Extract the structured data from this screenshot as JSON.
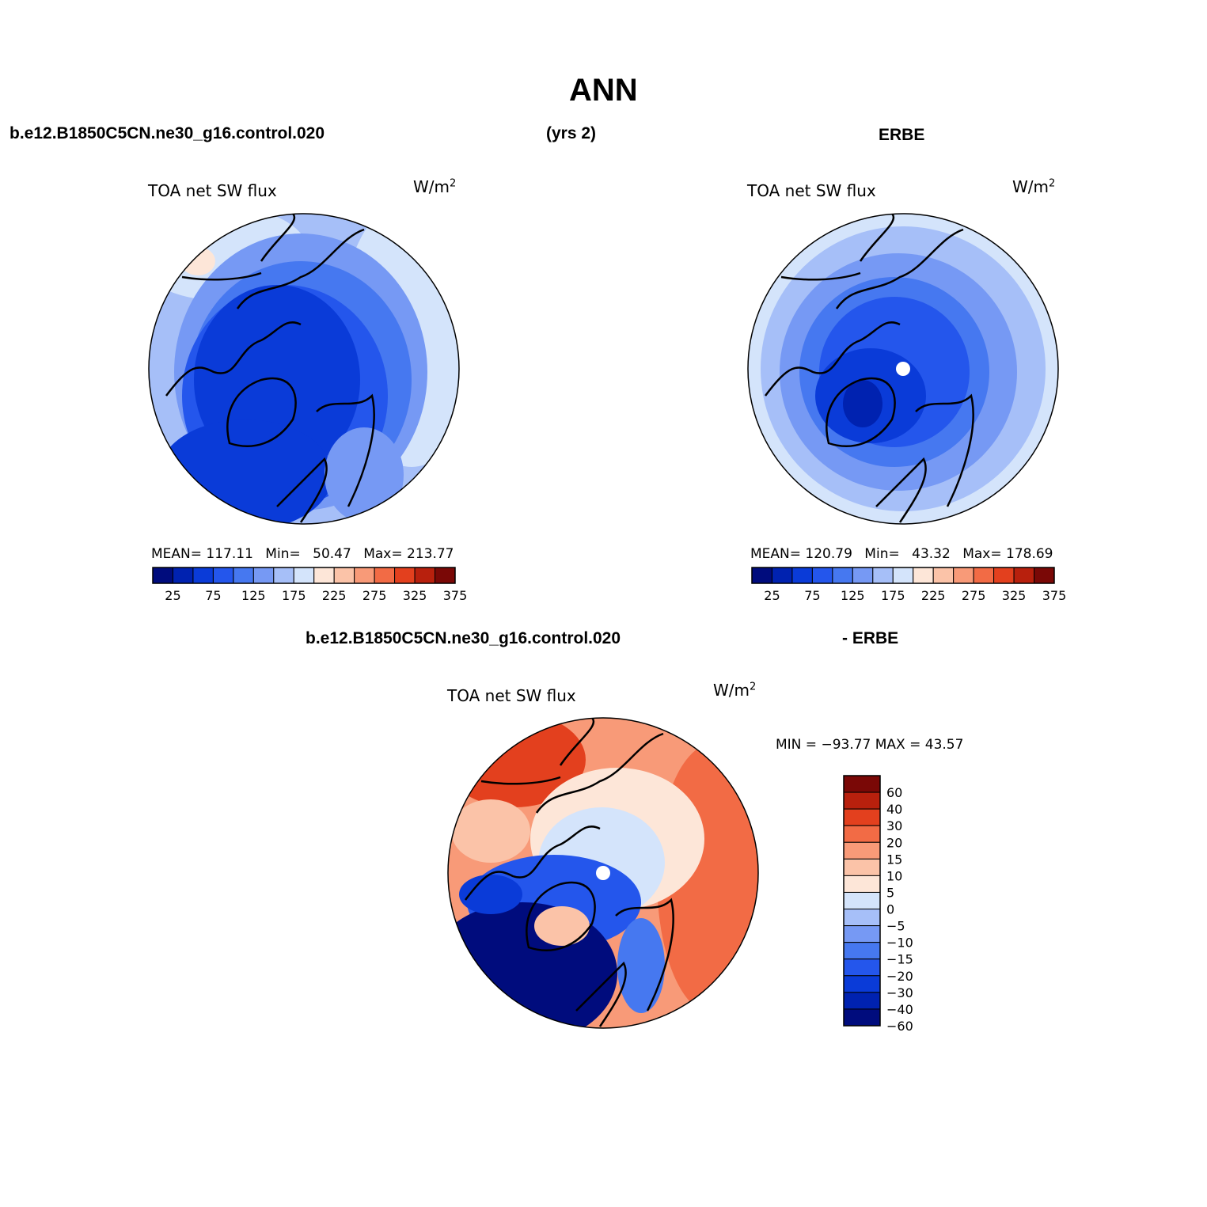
{
  "figure": {
    "title": "ANN",
    "left_header": "b.e12.B1850C5CN.ne30_g16.control.020",
    "center_header": "(yrs 2)",
    "right_header": "ERBE",
    "diff_header_left": "b.e12.B1850C5CN.ne30_g16.control.020",
    "diff_header_right": "- ERBE"
  },
  "panels": {
    "model": {
      "variable": "TOA net SW flux",
      "units_base": "W/m",
      "units_exp": "2",
      "stats": {
        "mean_label": "MEAN=",
        "mean": "117.11",
        "min_label": "Min=",
        "min": "50.47",
        "max_label": "Max=",
        "max": "213.77"
      }
    },
    "obs": {
      "variable": "TOA net SW flux",
      "units_base": "W/m",
      "units_exp": "2",
      "stats": {
        "mean_label": "MEAN=",
        "mean": "120.79",
        "min_label": "Min=",
        "min": "43.32",
        "max_label": "Max=",
        "max": "178.69"
      }
    },
    "diff": {
      "variable": "TOA net SW flux",
      "units_base": "W/m",
      "units_exp": "2",
      "minmax": "MIN = −93.77 MAX =   43.57"
    }
  },
  "colorbars": {
    "abs": {
      "colors": [
        "#000c7d",
        "#0022b0",
        "#0a3bd8",
        "#2456ec",
        "#4678f0",
        "#7699f4",
        "#a6bff8",
        "#d4e4fb",
        "#fde6d8",
        "#fbc3a8",
        "#f89a78",
        "#f26b45",
        "#e3401e",
        "#b8200d",
        "#7a0806"
      ],
      "tick_labels": [
        "25",
        "75",
        "125",
        "175",
        "225",
        "275",
        "325",
        "375"
      ]
    },
    "diff": {
      "colors": [
        "#000c7d",
        "#0022b0",
        "#0a3bd8",
        "#2456ec",
        "#4678f0",
        "#7699f4",
        "#a6bff8",
        "#d4e4fb",
        "#fde6d8",
        "#fbc3a8",
        "#f89a78",
        "#f26b45",
        "#e3401e",
        "#b8200d",
        "#7a0806"
      ],
      "tick_labels": [
        "60",
        "40",
        "30",
        "20",
        "15",
        "10",
        "5",
        "0",
        "−5",
        "−10",
        "−15",
        "−20",
        "−30",
        "−40",
        "−60"
      ]
    }
  },
  "chart_data": [
    {
      "type": "heatmap",
      "title": "TOA net SW flux",
      "subtitle": "b.e12.B1850C5CN.ne30_g16.control.020",
      "units": "W/m2",
      "projection": "north polar stereographic",
      "contour_levels": [
        25,
        50,
        75,
        100,
        125,
        150,
        175,
        200,
        225,
        250,
        275,
        300,
        325,
        350,
        375
      ],
      "mean": 117.11,
      "min": 50.47,
      "max": 213.77
    },
    {
      "type": "heatmap",
      "title": "TOA net SW flux",
      "subtitle": "ERBE",
      "units": "W/m2",
      "projection": "north polar stereographic",
      "contour_levels": [
        25,
        50,
        75,
        100,
        125,
        150,
        175,
        200,
        225,
        250,
        275,
        300,
        325,
        350,
        375
      ],
      "mean": 120.79,
      "min": 43.32,
      "max": 178.69
    },
    {
      "type": "heatmap",
      "title": "TOA net SW flux",
      "subtitle": "b.e12.B1850C5CN.ne30_g16.control.020 - ERBE",
      "units": "W/m2",
      "projection": "north polar stereographic",
      "contour_levels": [
        -60,
        -40,
        -30,
        -20,
        -15,
        -10,
        -5,
        0,
        5,
        10,
        15,
        20,
        30,
        40,
        60
      ],
      "min": -93.77,
      "max": 43.57
    }
  ]
}
